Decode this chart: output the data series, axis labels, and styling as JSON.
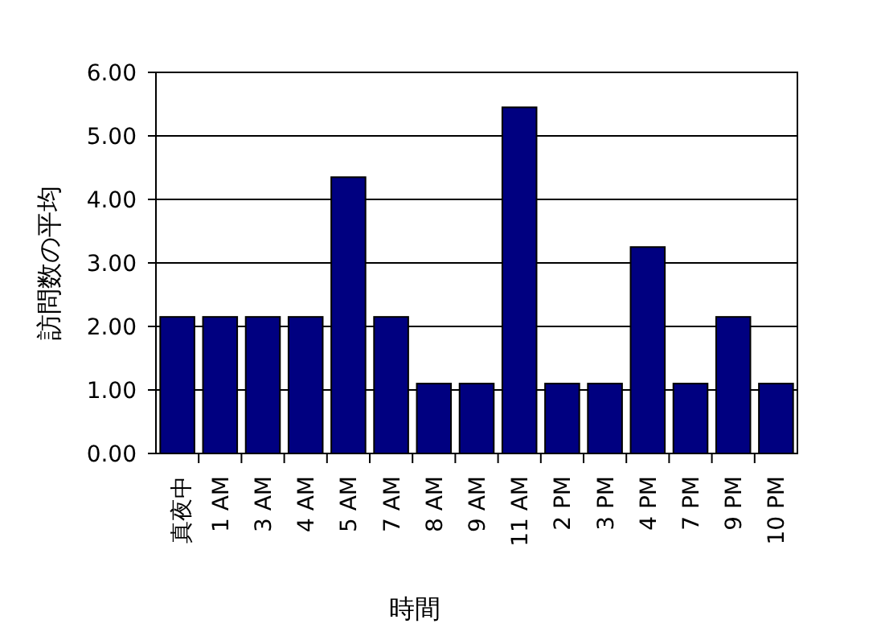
{
  "chart_data": {
    "type": "bar",
    "xlabel": "時間",
    "ylabel": "訪問数の平均",
    "categories": [
      "真夜中",
      "1 AM",
      "3 AM",
      "4 AM",
      "5 AM",
      "7 AM",
      "8 AM",
      "9 AM",
      "11 AM",
      "2 PM",
      "3 PM",
      "4 PM",
      "7 PM",
      "9 PM",
      "10 PM"
    ],
    "values": [
      2.15,
      2.15,
      2.15,
      2.15,
      4.35,
      2.15,
      1.1,
      1.1,
      5.45,
      1.1,
      1.1,
      3.25,
      1.1,
      2.15,
      1.1
    ],
    "color": "#000080",
    "ylim": [
      0,
      6
    ],
    "yticks": [
      {
        "value": 0,
        "label": "0.00"
      },
      {
        "value": 1,
        "label": "1.00"
      },
      {
        "value": 2,
        "label": "2.00"
      },
      {
        "value": 3,
        "label": "3.00"
      },
      {
        "value": 4,
        "label": "4.00"
      },
      {
        "value": 5,
        "label": "5.00"
      },
      {
        "value": 6,
        "label": "6.00"
      }
    ],
    "grid": "y"
  }
}
